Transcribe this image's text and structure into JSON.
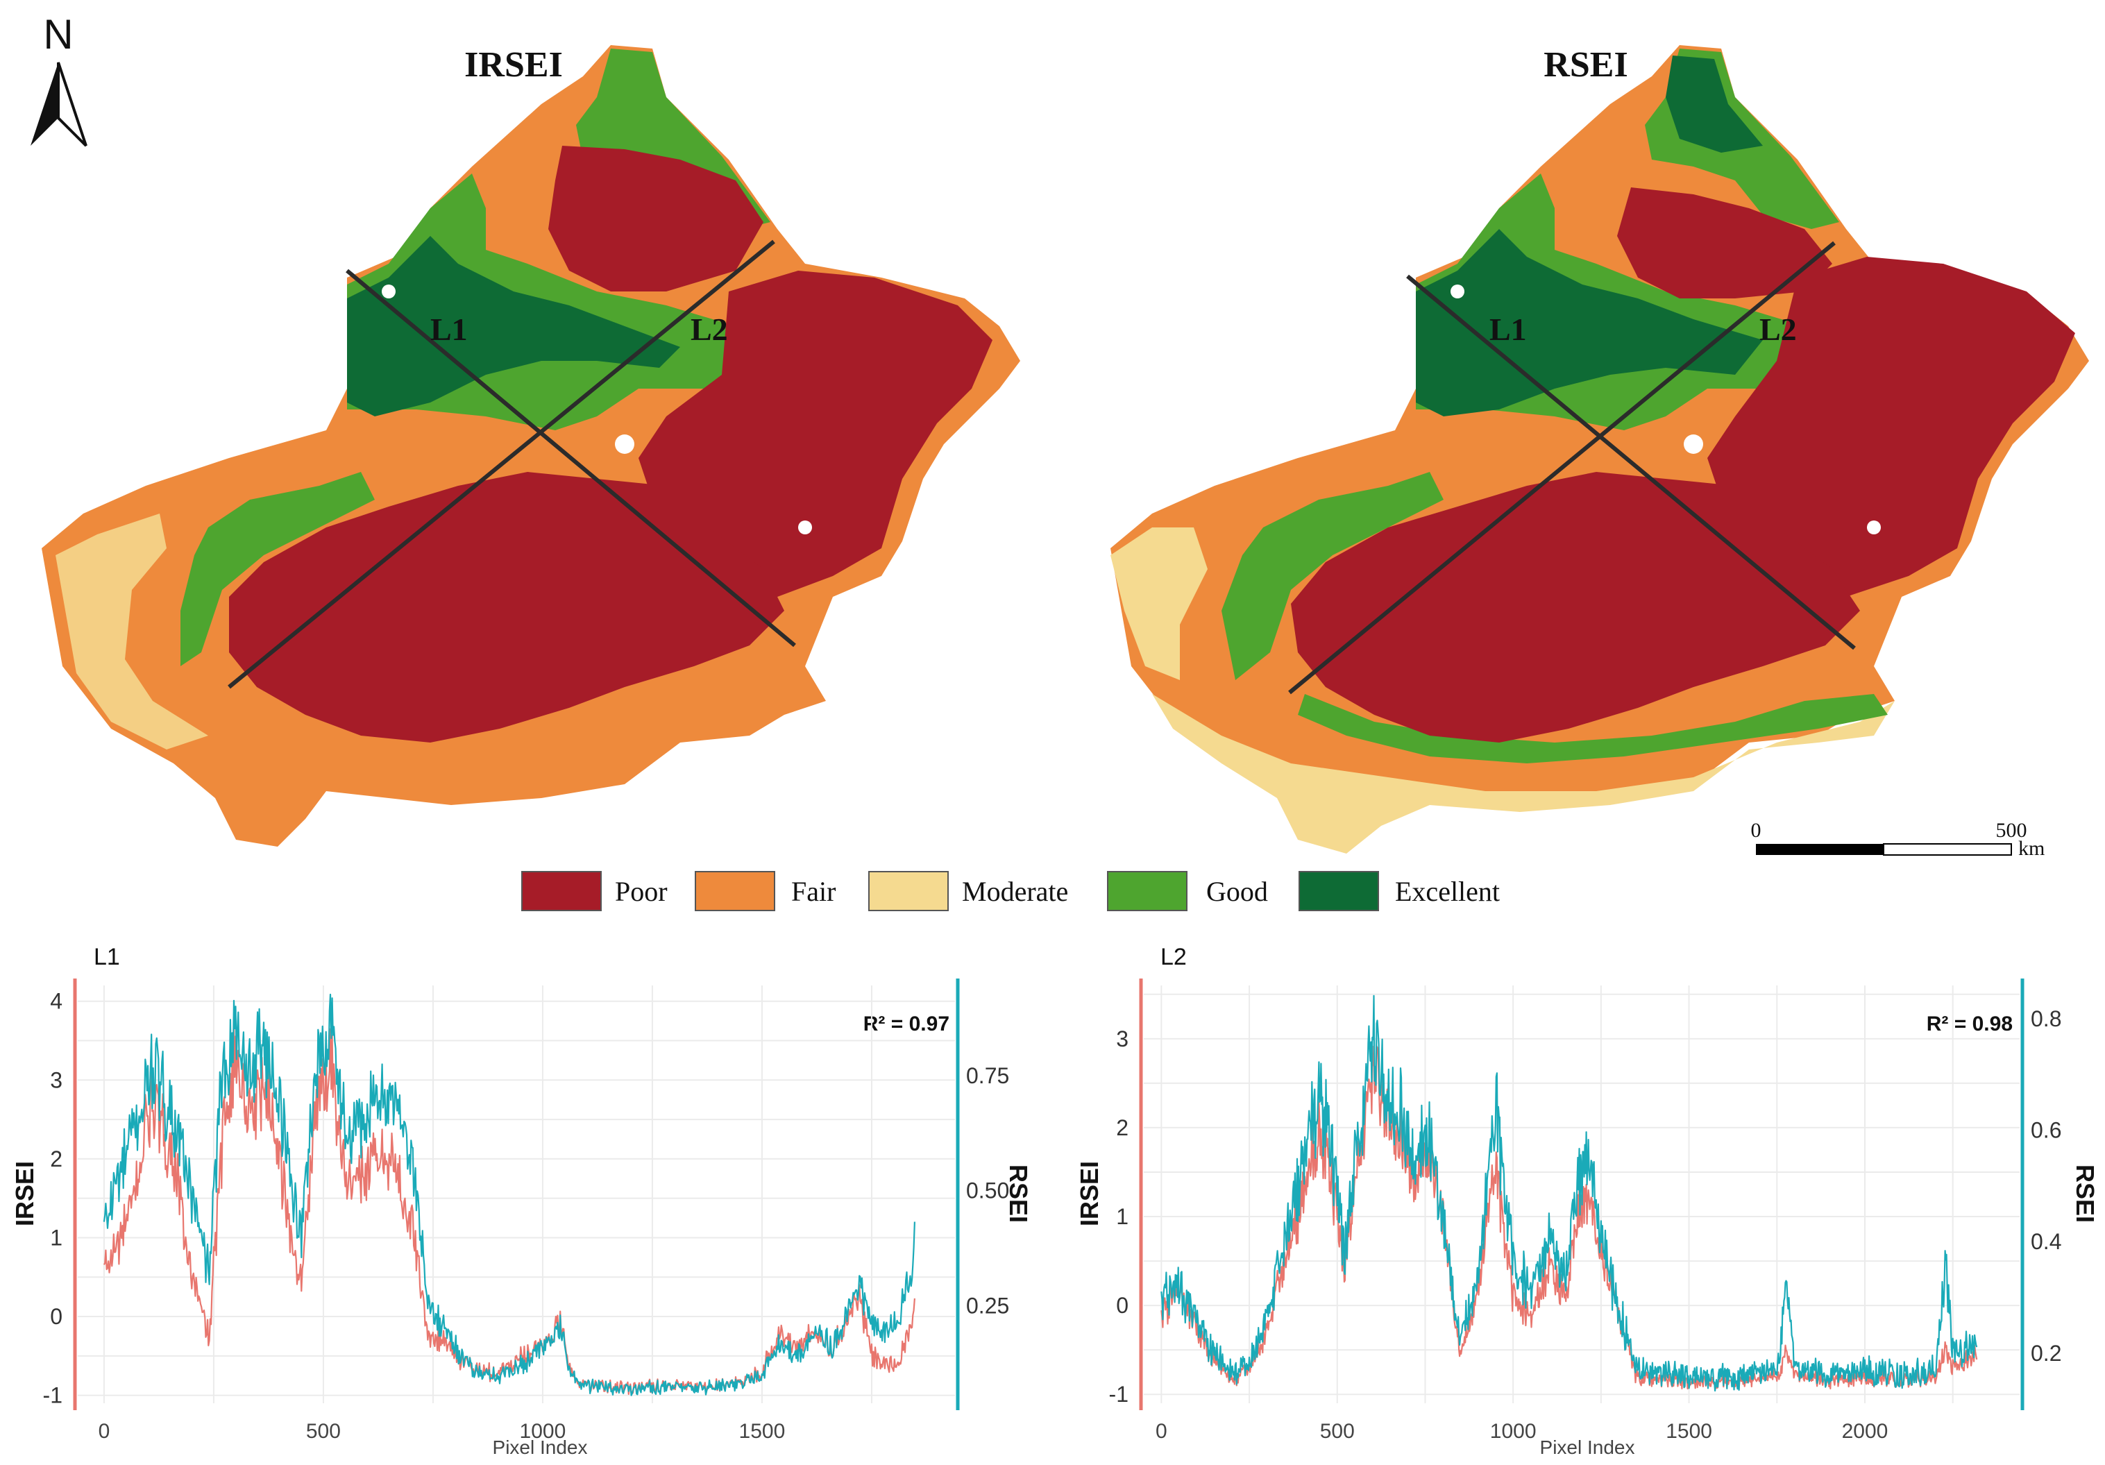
{
  "maps": {
    "irsei_title": "IRSEI",
    "rsei_title": "RSEI",
    "north_label": "N",
    "transect_labels": [
      "L1",
      "L2"
    ],
    "scale": {
      "start": "0",
      "end": "500",
      "unit": "km"
    },
    "legend": [
      {
        "label": "Poor",
        "color": "#A61C28"
      },
      {
        "label": "Fair",
        "color": "#EE8A3C"
      },
      {
        "label": "Moderate",
        "color": "#F5DA90"
      },
      {
        "label": "Good",
        "color": "#4EA52F"
      },
      {
        "label": "Excellent",
        "color": "#0E6B35"
      }
    ]
  },
  "chart_data": [
    {
      "type": "line",
      "title": "L1",
      "xlabel": "Pixel Index",
      "ylabel_left": "IRSEI",
      "ylabel_right": "RSEI",
      "annotation": "R² = 0.97",
      "r2_value": "0.97",
      "xlim": [
        -60,
        1940
      ],
      "ylim_left": [
        -1.1,
        4.2
      ],
      "ylim_right": [
        0.038,
        0.946
      ],
      "x_ticks": [
        "0",
        "500",
        "1000",
        "1500"
      ],
      "x_tick_values": [
        0,
        500,
        1000,
        1500
      ],
      "y_left_ticks": [
        "-1",
        "0",
        "1",
        "2",
        "3",
        "4"
      ],
      "y_left_tick_values": [
        -1,
        0,
        1,
        2,
        3,
        4
      ],
      "y_right_ticks": [
        "0.25",
        "0.50",
        "0.75"
      ],
      "y_right_tick_values": [
        0.25,
        0.5,
        0.75
      ],
      "colors": {
        "irsei": "#E8766E",
        "rsei": "#1AAAB8"
      },
      "n_points": 1850,
      "series": [
        {
          "name": "IRSEI",
          "axis": "left",
          "x": [
            0,
            30,
            60,
            90,
            110,
            130,
            160,
            190,
            220,
            240,
            260,
            280,
            300,
            330,
            360,
            390,
            420,
            450,
            480,
            500,
            520,
            540,
            560,
            590,
            620,
            650,
            680,
            710,
            740,
            780,
            820,
            860,
            900,
            950,
            1000,
            1040,
            1070,
            1090,
            1150,
            1250,
            1350,
            1450,
            1500,
            1540,
            1570,
            1600,
            1630,
            1660,
            1690,
            1720,
            1750,
            1780,
            1810,
            1840,
            1850
          ],
          "y": [
            0.6,
            0.9,
            1.3,
            2.2,
            2.8,
            2.4,
            2.0,
            0.8,
            0.1,
            -0.3,
            1.5,
            2.8,
            3.3,
            2.5,
            3.0,
            2.4,
            1.2,
            0.4,
            2.6,
            2.9,
            3.3,
            2.2,
            1.6,
            1.8,
            2.0,
            2.1,
            1.6,
            0.9,
            -0.3,
            -0.3,
            -0.6,
            -0.7,
            -0.7,
            -0.5,
            -0.4,
            -0.1,
            -0.8,
            -0.85,
            -0.9,
            -0.88,
            -0.9,
            -0.85,
            -0.7,
            -0.2,
            -0.4,
            -0.3,
            -0.2,
            -0.4,
            -0.1,
            0.3,
            -0.5,
            -0.6,
            -0.6,
            -0.1,
            0.2
          ]
        },
        {
          "name": "RSEI",
          "axis": "right",
          "x": [
            0,
            30,
            60,
            90,
            110,
            130,
            160,
            190,
            220,
            240,
            260,
            280,
            300,
            330,
            360,
            390,
            420,
            450,
            480,
            500,
            520,
            540,
            560,
            590,
            620,
            650,
            680,
            710,
            740,
            780,
            820,
            860,
            900,
            950,
            1000,
            1040,
            1070,
            1090,
            1150,
            1250,
            1350,
            1450,
            1500,
            1540,
            1570,
            1600,
            1630,
            1660,
            1690,
            1720,
            1750,
            1780,
            1810,
            1840,
            1850
          ],
          "y": [
            0.42,
            0.52,
            0.61,
            0.7,
            0.76,
            0.72,
            0.66,
            0.53,
            0.4,
            0.32,
            0.64,
            0.8,
            0.85,
            0.75,
            0.83,
            0.74,
            0.56,
            0.4,
            0.76,
            0.8,
            0.88,
            0.7,
            0.6,
            0.65,
            0.68,
            0.72,
            0.66,
            0.52,
            0.24,
            0.2,
            0.13,
            0.1,
            0.1,
            0.12,
            0.16,
            0.2,
            0.09,
            0.08,
            0.07,
            0.072,
            0.07,
            0.078,
            0.1,
            0.17,
            0.14,
            0.16,
            0.2,
            0.16,
            0.23,
            0.3,
            0.21,
            0.19,
            0.22,
            0.31,
            0.4
          ]
        }
      ]
    },
    {
      "type": "line",
      "title": "L2",
      "xlabel": "Pixel Index",
      "ylabel_left": "IRSEI",
      "ylabel_right": "RSEI",
      "annotation": "R² = 0.98",
      "r2_value": "0.98",
      "xlim": [
        -50,
        2440
      ],
      "ylim_left": [
        -1.1,
        3.6
      ],
      "ylim_right": [
        0.11,
        0.86
      ],
      "x_ticks": [
        "0",
        "500",
        "1000",
        "1500",
        "2000"
      ],
      "x_tick_values": [
        0,
        500,
        1000,
        1500,
        2000
      ],
      "y_left_ticks": [
        "-1",
        "0",
        "1",
        "2",
        "3"
      ],
      "y_left_tick_values": [
        -1,
        0,
        1,
        2,
        3
      ],
      "y_right_ticks": [
        "0.2",
        "0.4",
        "0.6",
        "0.8"
      ],
      "y_right_tick_values": [
        0.2,
        0.4,
        0.6,
        0.8
      ],
      "colors": {
        "irsei": "#E8766E",
        "rsei": "#1AAAB8"
      },
      "n_points": 2320,
      "series": [
        {
          "name": "IRSEI",
          "axis": "left",
          "x": [
            0,
            50,
            100,
            150,
            200,
            250,
            300,
            350,
            400,
            450,
            480,
            520,
            560,
            600,
            640,
            680,
            720,
            760,
            800,
            850,
            900,
            950,
            1000,
            1050,
            1100,
            1150,
            1200,
            1250,
            1290,
            1350,
            1450,
            1550,
            1650,
            1750,
            1780,
            1800,
            1900,
            2000,
            2100,
            2200,
            2230,
            2250,
            2300,
            2320
          ],
          "y": [
            -0.1,
            0.2,
            -0.3,
            -0.6,
            -0.85,
            -0.7,
            -0.3,
            0.5,
            1.2,
            1.9,
            1.5,
            0.4,
            1.6,
            2.7,
            2.2,
            2.0,
            1.4,
            1.7,
            1.0,
            -0.6,
            0.2,
            1.6,
            0.1,
            -0.1,
            0.4,
            0.1,
            1.3,
            0.6,
            0.1,
            -0.8,
            -0.85,
            -0.88,
            -0.85,
            -0.8,
            -0.5,
            -0.8,
            -0.85,
            -0.8,
            -0.85,
            -0.8,
            -0.5,
            -0.7,
            -0.6,
            -0.5
          ]
        },
        {
          "name": "RSEI",
          "axis": "right",
          "x": [
            0,
            50,
            100,
            150,
            200,
            250,
            300,
            350,
            400,
            450,
            480,
            520,
            560,
            600,
            640,
            680,
            720,
            760,
            800,
            850,
            900,
            950,
            1000,
            1050,
            1100,
            1150,
            1200,
            1250,
            1290,
            1350,
            1450,
            1550,
            1650,
            1750,
            1780,
            1800,
            1900,
            2000,
            2100,
            2200,
            2230,
            2250,
            2300,
            2320
          ],
          "y": [
            0.3,
            0.32,
            0.25,
            0.2,
            0.16,
            0.18,
            0.26,
            0.4,
            0.54,
            0.66,
            0.58,
            0.38,
            0.58,
            0.76,
            0.66,
            0.64,
            0.55,
            0.6,
            0.44,
            0.22,
            0.34,
            0.64,
            0.36,
            0.32,
            0.4,
            0.34,
            0.56,
            0.42,
            0.3,
            0.17,
            0.16,
            0.155,
            0.16,
            0.17,
            0.33,
            0.17,
            0.16,
            0.17,
            0.16,
            0.17,
            0.36,
            0.2,
            0.21,
            0.23
          ]
        }
      ]
    }
  ]
}
